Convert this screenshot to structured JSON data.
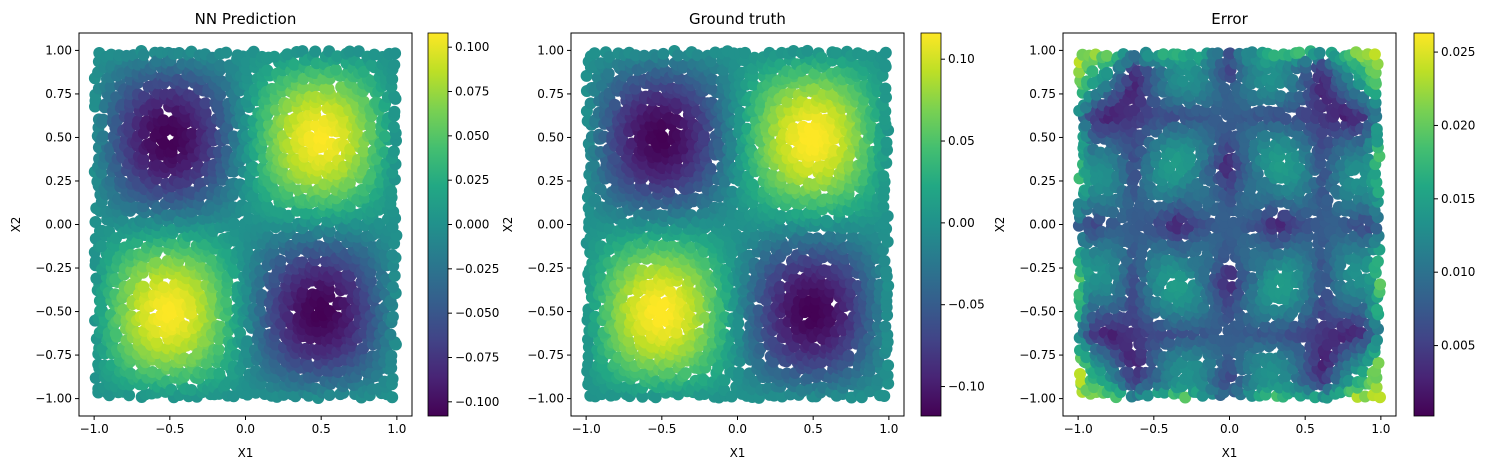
{
  "chart_data": [
    {
      "type": "scatter",
      "title": "NN Prediction",
      "xlabel": "X1",
      "ylabel": "X2",
      "xlim": [
        -1.1,
        1.1
      ],
      "ylim": [
        -1.1,
        1.1
      ],
      "xticks": [
        -1.0,
        -0.5,
        0.0,
        0.5,
        1.0
      ],
      "xtick_labels": [
        "−1.0",
        "−0.5",
        "0.0",
        "0.5",
        "1.0"
      ],
      "yticks": [
        1.0,
        0.75,
        0.5,
        0.25,
        0.0,
        -0.25,
        -0.5,
        -0.75,
        -1.0
      ],
      "ytick_labels": [
        "1.00",
        "0.75",
        "0.50",
        "0.25",
        "0.00",
        "−0.25",
        "−0.50",
        "−0.75",
        "−1.00"
      ],
      "field": "product",
      "amplitude": 0.108,
      "colorbar": {
        "range": [
          -0.108,
          0.108
        ],
        "ticks": [
          0.1,
          0.075,
          0.05,
          0.025,
          0.0,
          -0.025,
          -0.05,
          -0.075,
          -0.1
        ],
        "labels": [
          "0.100",
          "0.075",
          "0.050",
          "0.025",
          "0.000",
          "−0.025",
          "−0.050",
          "−0.075",
          "−0.100"
        ]
      },
      "colormap": "viridis",
      "grid": false
    },
    {
      "type": "scatter",
      "title": "Ground truth",
      "xlabel": "X1",
      "ylabel": "X2",
      "xlim": [
        -1.1,
        1.1
      ],
      "ylim": [
        -1.1,
        1.1
      ],
      "xticks": [
        -1.0,
        -0.5,
        0.0,
        0.5,
        1.0
      ],
      "xtick_labels": [
        "−1.0",
        "−0.5",
        "0.0",
        "0.5",
        "1.0"
      ],
      "yticks": [
        1.0,
        0.75,
        0.5,
        0.25,
        0.0,
        -0.25,
        -0.5,
        -0.75,
        -1.0
      ],
      "ytick_labels": [
        "1.00",
        "0.75",
        "0.50",
        "0.25",
        "0.00",
        "−0.25",
        "−0.50",
        "−0.75",
        "−1.00"
      ],
      "field": "product",
      "amplitude": 0.118,
      "colorbar": {
        "range": [
          -0.118,
          0.116
        ],
        "ticks": [
          0.1,
          0.05,
          0.0,
          -0.05,
          -0.1
        ],
        "labels": [
          "0.10",
          "0.05",
          "0.00",
          "−0.05",
          "−0.10"
        ]
      },
      "colormap": "viridis",
      "grid": false
    },
    {
      "type": "scatter",
      "title": "Error",
      "xlabel": "X1",
      "ylabel": "X2",
      "xlim": [
        -1.1,
        1.1
      ],
      "ylim": [
        -1.1,
        1.1
      ],
      "xticks": [
        -1.0,
        -0.5,
        0.0,
        0.5,
        1.0
      ],
      "xtick_labels": [
        "−1.0",
        "−0.5",
        "0.0",
        "0.5",
        "1.0"
      ],
      "yticks": [
        1.0,
        0.75,
        0.5,
        0.25,
        0.0,
        -0.25,
        -0.5,
        -0.75,
        -1.0
      ],
      "ytick_labels": [
        "1.00",
        "0.75",
        "0.50",
        "0.25",
        "0.00",
        "−0.25",
        "−0.50",
        "−0.75",
        "−1.00"
      ],
      "field": "error",
      "colorbar": {
        "range": [
          0.0002,
          0.0263
        ],
        "ticks": [
          0.025,
          0.02,
          0.015,
          0.01,
          0.005
        ],
        "labels": [
          "0.025",
          "0.020",
          "0.015",
          "0.010",
          "0.005"
        ]
      },
      "colormap": "viridis",
      "grid": false
    }
  ]
}
